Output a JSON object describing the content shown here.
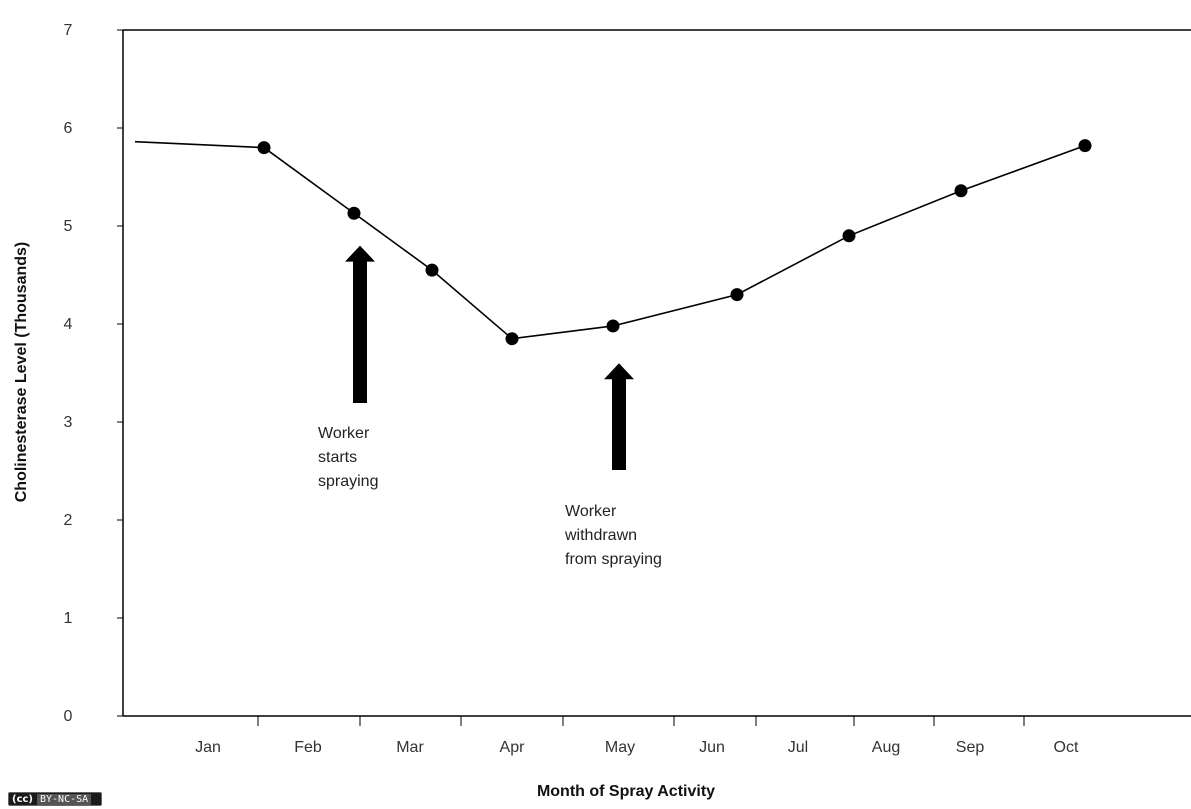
{
  "chart_data": {
    "type": "line",
    "xlabel": "Month of Spray Activity",
    "ylabel": "Cholinesterase Level (Thousands)",
    "ylim": [
      0,
      7
    ],
    "yticks": [
      0,
      1,
      2,
      3,
      4,
      5,
      6,
      7
    ],
    "categories": [
      "Jan",
      "Feb",
      "Mar",
      "Apr",
      "May",
      "Jun",
      "Jul",
      "Aug",
      "Sep",
      "Oct"
    ],
    "series": [
      {
        "x": [
          "Feb",
          "Feb/Mar",
          "Mar/Apr",
          "Apr",
          "May",
          "Jun/Jul",
          "Aug",
          "Sep",
          "Oct"
        ],
        "values": [
          5.8,
          5.13,
          4.55,
          3.85,
          3.98,
          4.3,
          4.9,
          5.36,
          5.82
        ],
        "line_start_value": 5.86,
        "color": "#000000"
      }
    ],
    "annotations": [
      {
        "text": [
          "Worker",
          "starts",
          "spraying"
        ],
        "arrow_at_value": 4.8
      },
      {
        "text": [
          "Worker",
          "withdrawn",
          "from spraying"
        ],
        "arrow_at_value": 3.6
      }
    ],
    "grid": false,
    "legend": "none"
  },
  "license_badge": {
    "cc": "(cc)",
    "text": "BY-NC-SA"
  }
}
